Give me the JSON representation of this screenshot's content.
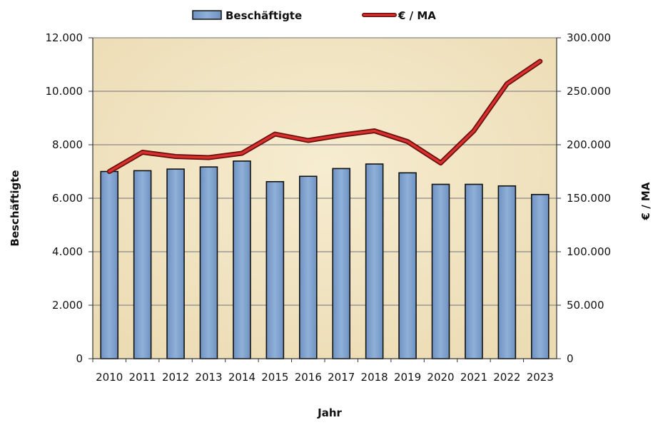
{
  "chart_data": {
    "type": "bar+line",
    "title": "",
    "categories": [
      "2010",
      "2011",
      "2012",
      "2013",
      "2014",
      "2015",
      "2016",
      "2017",
      "2018",
      "2019",
      "2020",
      "2021",
      "2022",
      "2023"
    ],
    "series": [
      {
        "name": "Beschäftigte",
        "type": "bar",
        "axis": "left",
        "color": "#7ea0cc",
        "values": [
          7000,
          7030,
          7090,
          7170,
          7390,
          6620,
          6820,
          7110,
          7280,
          6950,
          6520,
          6520,
          6460,
          6140
        ]
      },
      {
        "name": "€ / MA",
        "type": "line",
        "axis": "right",
        "color": "#c0201f",
        "values": [
          175000,
          193000,
          189000,
          188000,
          192000,
          210000,
          204000,
          209000,
          213000,
          203000,
          183000,
          213000,
          257000,
          278000
        ]
      }
    ],
    "xlabel": "Jahr",
    "ylabel_left": "Beschäftigte",
    "ylabel_right": "€ / MA",
    "ylim_left": [
      0,
      12000
    ],
    "ylim_right": [
      0,
      300000
    ],
    "yticks_left": [
      "0",
      "2.000",
      "4.000",
      "6.000",
      "8.000",
      "10.000",
      "12.000"
    ],
    "yticks_right": [
      "0",
      "50.000",
      "100.000",
      "150.000",
      "200.000",
      "250.000",
      "300.000"
    ],
    "grid": true,
    "legend_position": "top",
    "plot_background": "#f1e5c4"
  }
}
